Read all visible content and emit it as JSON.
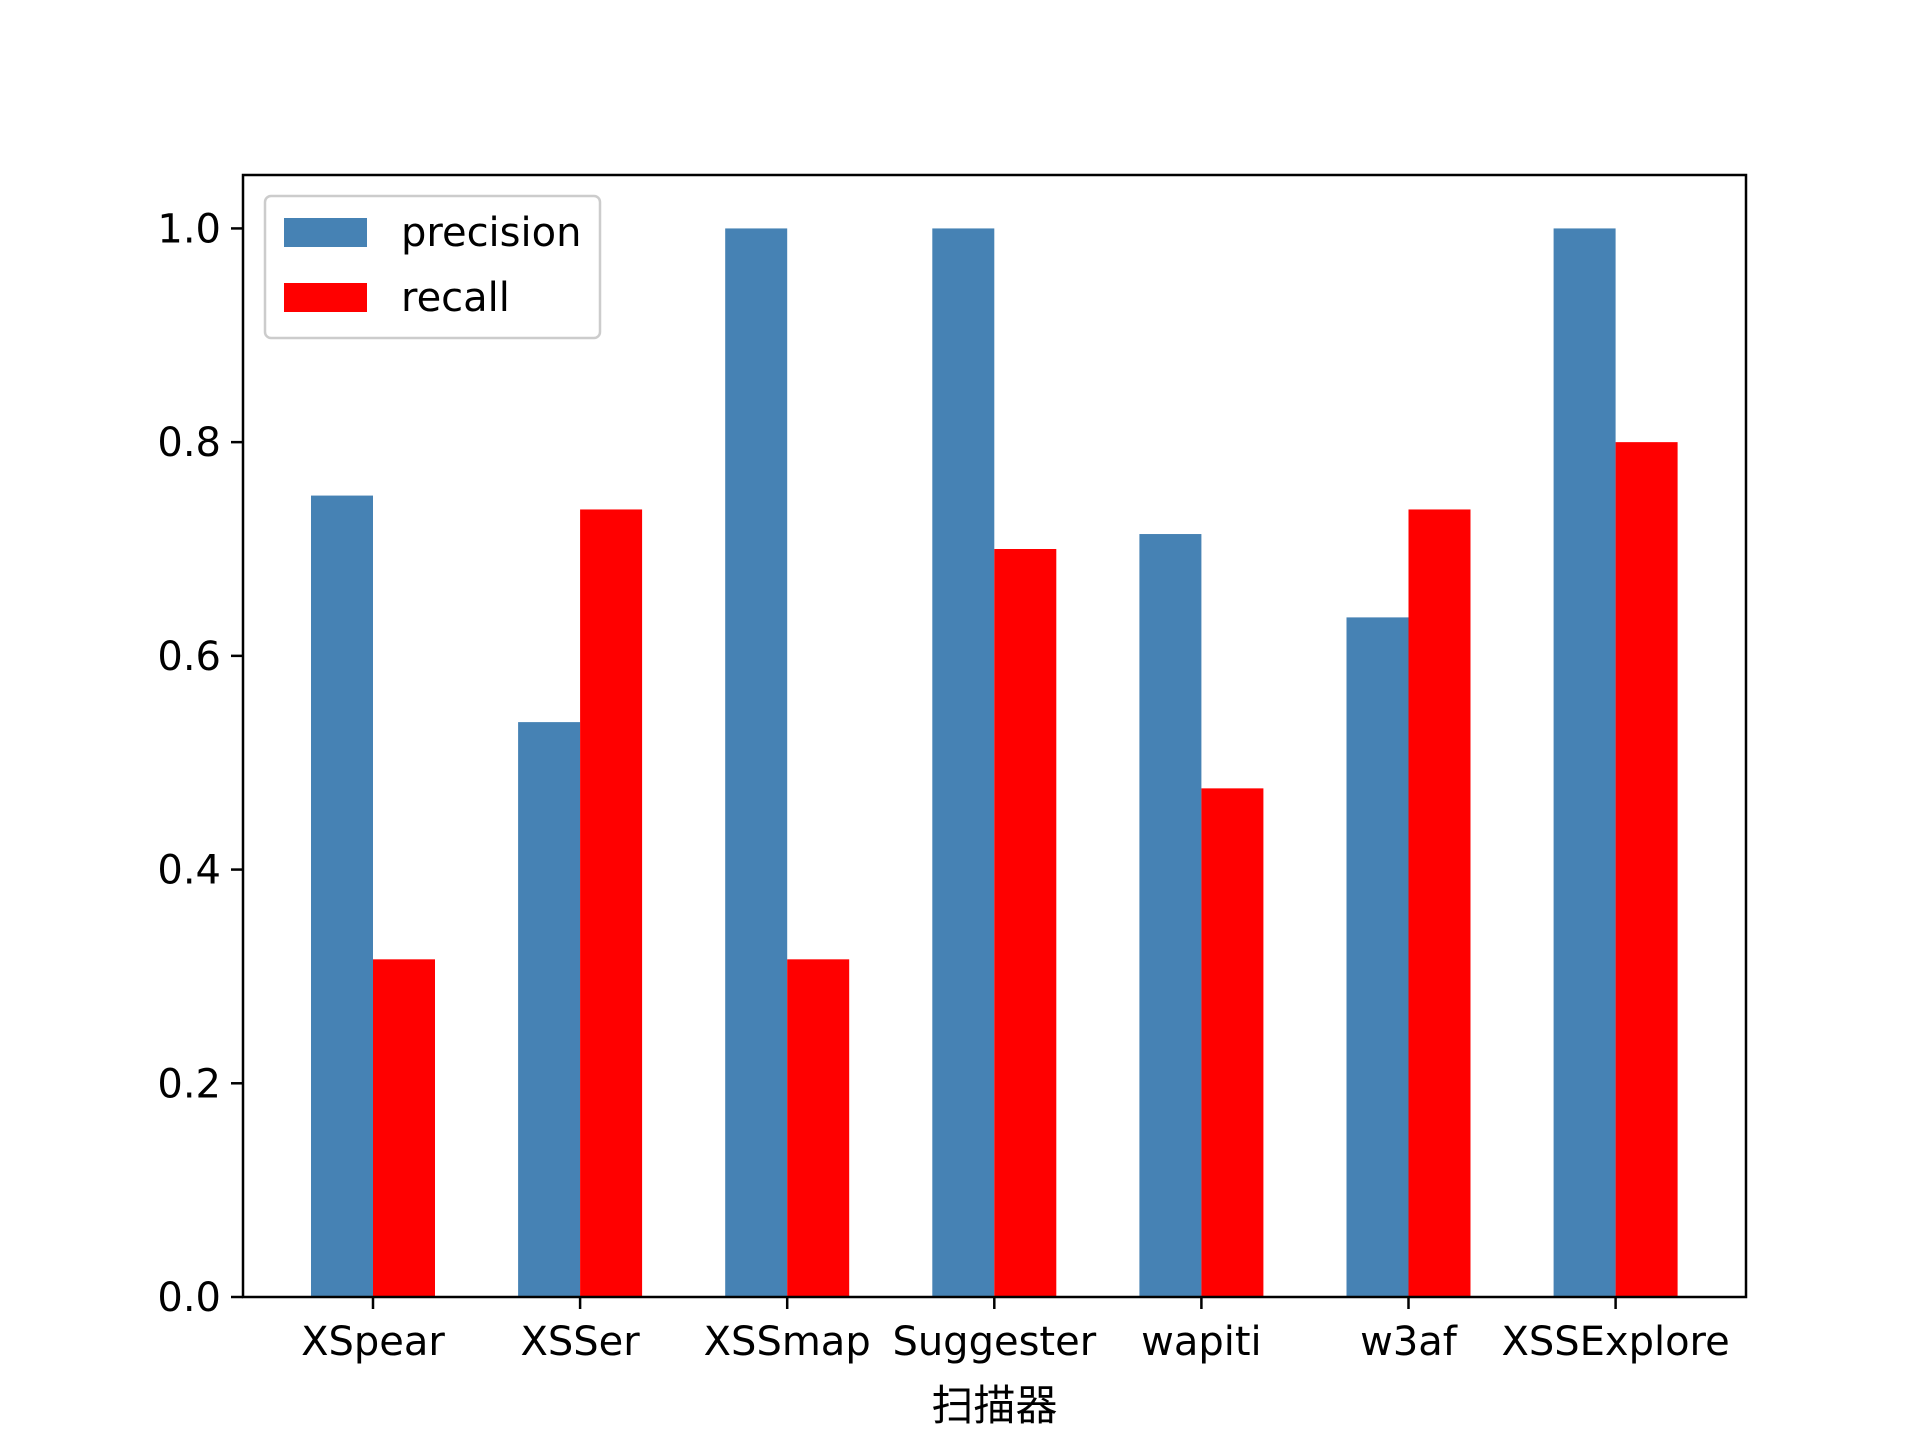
{
  "chart_data": {
    "type": "bar",
    "title": "",
    "xlabel": "扫描器",
    "ylabel": "",
    "categories": [
      "XSpear",
      "XSSer",
      "XSSmap",
      "Suggester",
      "wapiti",
      "w3af",
      "XSSExplore"
    ],
    "series": [
      {
        "name": "precision",
        "color": "#4682b4",
        "values": [
          0.75,
          0.538,
          1.0,
          1.0,
          0.714,
          0.636,
          1.0
        ]
      },
      {
        "name": "recall",
        "color": "#ff0000",
        "values": [
          0.316,
          0.737,
          0.316,
          0.7,
          0.476,
          0.737,
          0.8
        ]
      }
    ],
    "ylim": [
      0,
      1.05
    ],
    "yticks": [
      "0.0",
      "0.2",
      "0.4",
      "0.6",
      "0.8",
      "1.0"
    ],
    "grid": false,
    "legend_position": "top-left"
  }
}
